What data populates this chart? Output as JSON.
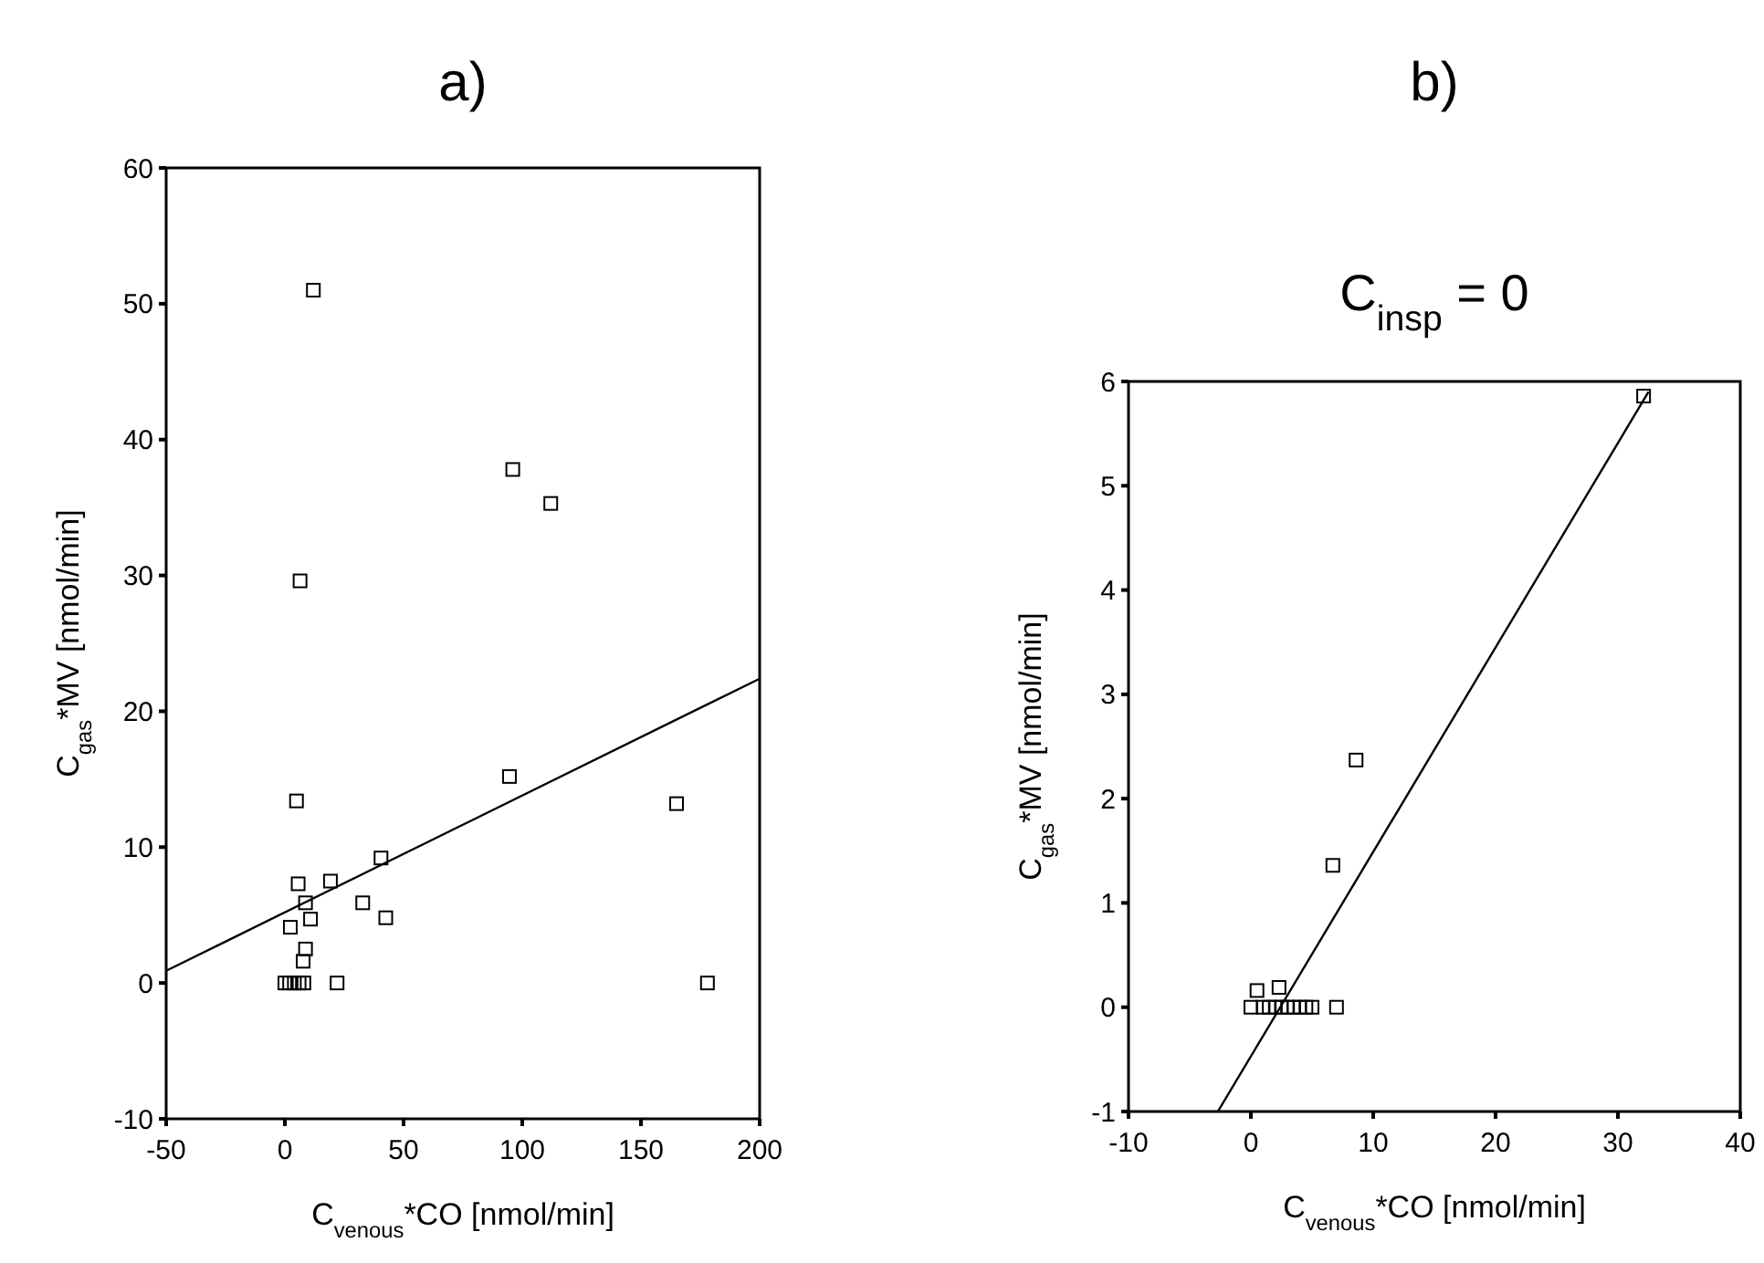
{
  "chart_data": [
    {
      "type": "scatter",
      "title": "a)",
      "xlabel": "C$_{venous}$*CO [nmol/min]",
      "ylabel": "C$_{gas}$*MV [nmol/min]",
      "xlim": [
        -50,
        200
      ],
      "ylim": [
        -10,
        60
      ],
      "xticks": [
        -50,
        0,
        50,
        100,
        150,
        200
      ],
      "yticks": [
        -10,
        0,
        10,
        20,
        30,
        40,
        50,
        60
      ],
      "grid": false,
      "series": [
        {
          "marker": "square",
          "color": "#000000",
          "x": [
            12,
            6.4,
            96,
            112,
            94.6,
            4.9,
            40.5,
            5.6,
            19.2,
            8.7,
            32.8,
            10.8,
            42.5,
            2.3,
            8.7,
            7.7,
            0,
            2,
            4,
            6,
            8,
            22,
            165,
            178
          ],
          "values": [
            51,
            29.6,
            37.8,
            35.3,
            15.2,
            13.4,
            9.2,
            7.3,
            7.5,
            5.9,
            5.9,
            4.7,
            4.8,
            4.1,
            2.5,
            1.6,
            0,
            0,
            0,
            0,
            0,
            0,
            13.2,
            0
          ]
        },
        {
          "type": "line",
          "marker": "none",
          "line_style": "solid",
          "color": "#000000",
          "x": [
            -50,
            200
          ],
          "values": [
            0.9,
            22.4
          ]
        }
      ]
    },
    {
      "type": "scatter",
      "title": "b)",
      "subtitle": "C$_{insp}$ = 0",
      "xlabel": "C$_{venous}$*CO [nmol/min]",
      "ylabel": "C$_{gas}$*MV [nmol/min]",
      "xlim": [
        -10,
        40
      ],
      "ylim": [
        -1,
        6
      ],
      "xticks": [
        -10,
        0,
        10,
        20,
        30,
        40
      ],
      "yticks": [
        -1,
        0,
        1,
        2,
        3,
        4,
        5,
        6
      ],
      "grid": false,
      "series": [
        {
          "marker": "square",
          "color": "#000000",
          "x": [
            32.1,
            8.6,
            6.7,
            0.5,
            2.3,
            0,
            1,
            1.5,
            2,
            2.5,
            3,
            3.5,
            4,
            4.5,
            5,
            7
          ],
          "values": [
            5.86,
            2.37,
            1.36,
            0.16,
            0.19,
            0,
            0,
            0,
            0,
            0,
            0,
            0,
            0,
            0,
            0,
            0
          ]
        },
        {
          "type": "line",
          "marker": "none",
          "line_style": "solid",
          "color": "#000000",
          "x": [
            -2.7,
            32.5
          ],
          "values": [
            -1,
            5.9
          ]
        }
      ]
    }
  ]
}
